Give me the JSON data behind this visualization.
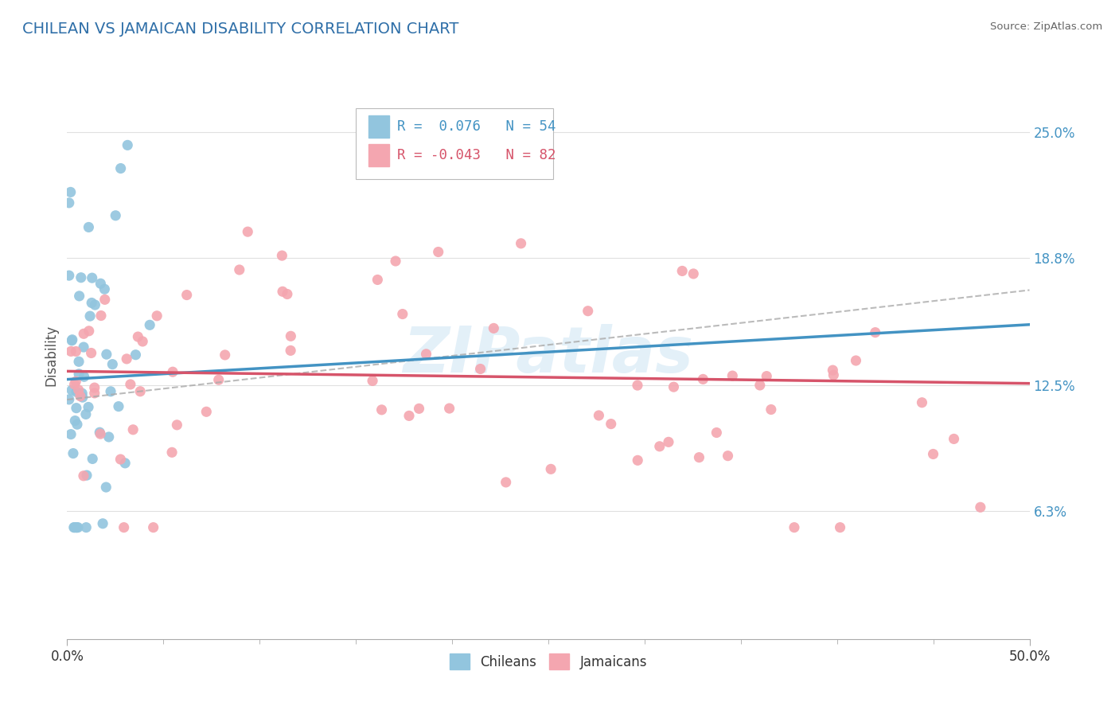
{
  "title": "CHILEAN VS JAMAICAN DISABILITY CORRELATION CHART",
  "source": "Source: ZipAtlas.com",
  "ylabel": "Disability",
  "watermark": "ZIPatlas",
  "chilean_R": 0.076,
  "chilean_N": 54,
  "jamaican_R": -0.043,
  "jamaican_N": 82,
  "chilean_color": "#92c5de",
  "jamaican_color": "#f4a6b0",
  "chilean_line_color": "#4393c3",
  "jamaican_line_color": "#d6546a",
  "xlim": [
    0.0,
    0.5
  ],
  "ylim": [
    0.0,
    0.28
  ],
  "ytick_vals": [
    0.063,
    0.125,
    0.188,
    0.25
  ],
  "ytick_labels": [
    "6.3%",
    "12.5%",
    "18.8%",
    "25.0%"
  ],
  "background_color": "#ffffff",
  "grid_color": "#e0e0e0",
  "title_color": "#2f6fa8",
  "title_fontsize": 14,
  "axis_tick_color": "#4393c3",
  "chilean_seed": 10,
  "jamaican_seed": 20
}
